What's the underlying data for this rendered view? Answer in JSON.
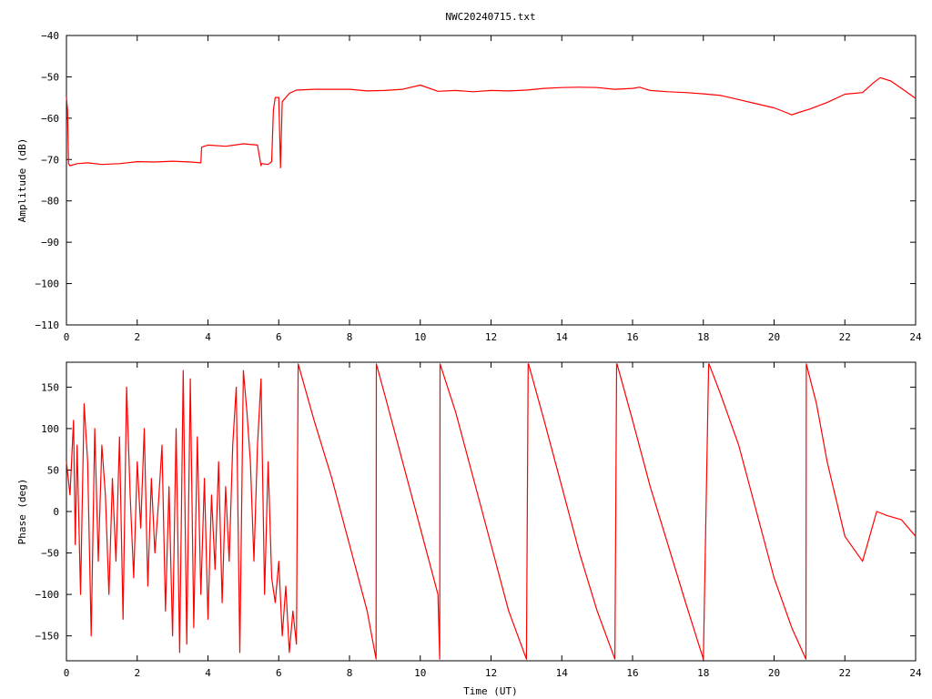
{
  "chart_data": [
    {
      "type": "line",
      "title": "NWC20240715.txt",
      "xlabel": "",
      "ylabel": "Amplitude (dB)",
      "xlim": [
        0,
        24
      ],
      "ylim": [
        -110,
        -40
      ],
      "xticks": [
        0,
        2,
        4,
        6,
        8,
        10,
        12,
        14,
        16,
        18,
        20,
        22,
        24
      ],
      "yticks": [
        -110,
        -100,
        -90,
        -80,
        -70,
        -60,
        -50,
        -40
      ],
      "xtick_labels": [
        "0",
        "2",
        "4",
        "6",
        "8",
        "10",
        "12",
        "14",
        "16",
        "18",
        "20",
        "22",
        "24"
      ],
      "ytick_labels": [
        "−110",
        "−100",
        "−90",
        "−80",
        "−70",
        "−60",
        "−50",
        "−40"
      ],
      "color": "#ff0000",
      "grid": false,
      "series": [
        {
          "x": [
            0.0,
            0.03,
            0.06,
            0.1,
            0.3,
            0.6,
            1.0,
            1.5,
            2.0,
            2.5,
            3.0,
            3.5,
            3.8,
            3.82,
            4.0,
            4.5,
            5.0,
            5.4,
            5.5,
            5.52,
            5.7,
            5.8,
            5.85,
            5.9,
            6.0,
            6.05,
            6.1,
            6.2,
            6.3,
            6.5,
            7.0,
            7.5,
            8.0,
            8.5,
            9.0,
            9.5,
            10.0,
            10.5,
            11.0,
            11.5,
            12.0,
            12.5,
            13.0,
            13.5,
            14.0,
            14.5,
            15.0,
            15.5,
            16.0,
            16.2,
            16.5,
            17.0,
            17.5,
            18.0,
            18.5,
            19.0,
            19.5,
            20.0,
            20.3,
            20.5,
            20.7,
            21.0,
            21.5,
            22.0,
            22.5,
            22.8,
            23.0,
            23.3,
            23.6,
            24.0
          ],
          "y": [
            -55,
            -58,
            -71,
            -71.5,
            -71,
            -70.8,
            -71.2,
            -71,
            -70.5,
            -70.6,
            -70.4,
            -70.6,
            -70.8,
            -67,
            -66.5,
            -66.8,
            -66.2,
            -66.5,
            -71.5,
            -71,
            -71.2,
            -70.5,
            -58,
            -55,
            -55,
            -72,
            -56,
            -55,
            -54,
            -53.2,
            -53,
            -53,
            -53,
            -53.4,
            -53.3,
            -53,
            -52,
            -53.5,
            -53.3,
            -53.6,
            -53.3,
            -53.4,
            -53.2,
            -52.8,
            -52.6,
            -52.5,
            -52.6,
            -53,
            -52.8,
            -52.5,
            -53.3,
            -53.6,
            -53.8,
            -54.1,
            -54.5,
            -55.5,
            -56.5,
            -57.5,
            -58.5,
            -59.2,
            -58.6,
            -57.8,
            -56.2,
            -54.2,
            -53.8,
            -51.5,
            -50.2,
            -51,
            -52.8,
            -55.2
          ]
        }
      ]
    },
    {
      "type": "line",
      "title": "",
      "xlabel": "Time (UT)",
      "ylabel": "Phase (deg)",
      "xlim": [
        0,
        24
      ],
      "ylim": [
        -180,
        180
      ],
      "xticks": [
        0,
        2,
        4,
        6,
        8,
        10,
        12,
        14,
        16,
        18,
        20,
        22,
        24
      ],
      "yticks": [
        -150,
        -100,
        -50,
        0,
        50,
        100,
        150
      ],
      "xtick_labels": [
        "0",
        "2",
        "4",
        "6",
        "8",
        "10",
        "12",
        "14",
        "16",
        "18",
        "20",
        "22",
        "24"
      ],
      "ytick_labels": [
        "−150",
        "−100",
        "−50",
        "0",
        "50",
        "100",
        "150"
      ],
      "color": "#ff0000",
      "grid": false,
      "series": [
        {
          "x": [
            0.0,
            0.1,
            0.2,
            0.25,
            0.3,
            0.4,
            0.5,
            0.6,
            0.7,
            0.8,
            0.9,
            1.0,
            1.1,
            1.2,
            1.3,
            1.4,
            1.5,
            1.6,
            1.7,
            1.8,
            1.9,
            2.0,
            2.1,
            2.2,
            2.3,
            2.4,
            2.5,
            2.6,
            2.7,
            2.8,
            2.9,
            3.0,
            3.1,
            3.2,
            3.3,
            3.4,
            3.5,
            3.6,
            3.7,
            3.8,
            3.9,
            4.0,
            4.1,
            4.2,
            4.3,
            4.4,
            4.5,
            4.6,
            4.7,
            4.8,
            4.9,
            5.0,
            5.1,
            5.2,
            5.3,
            5.4,
            5.5,
            5.6,
            5.7,
            5.8,
            5.9,
            6.0,
            6.1,
            6.2,
            6.3,
            6.4,
            6.5,
            6.55,
            7.0,
            7.5,
            8.0,
            8.5,
            8.75,
            8.76,
            9.0,
            9.5,
            10.0,
            10.5,
            10.55,
            10.56,
            11.0,
            11.5,
            12.0,
            12.5,
            13.0,
            13.05,
            13.06,
            13.5,
            14.0,
            14.5,
            15.0,
            15.5,
            15.55,
            15.56,
            16.0,
            16.5,
            17.0,
            17.5,
            18.0,
            18.15,
            18.16,
            18.5,
            19.0,
            19.5,
            20.0,
            20.5,
            20.9,
            20.91,
            21.2,
            21.5,
            22.0,
            22.5,
            22.7,
            22.9,
            23.2,
            23.6,
            24.0
          ],
          "y": [
            60,
            20,
            110,
            -40,
            80,
            -100,
            130,
            60,
            -150,
            100,
            -60,
            80,
            20,
            -100,
            40,
            -60,
            90,
            -130,
            150,
            20,
            -80,
            60,
            -20,
            100,
            -90,
            40,
            -50,
            10,
            80,
            -120,
            30,
            -150,
            100,
            -170,
            170,
            -160,
            160,
            -140,
            90,
            -100,
            40,
            -130,
            20,
            -70,
            60,
            -110,
            30,
            -60,
            80,
            150,
            -170,
            170,
            120,
            60,
            -60,
            80,
            160,
            -100,
            60,
            -80,
            -110,
            -60,
            -150,
            -90,
            -170,
            -120,
            -160,
            178,
            110,
            40,
            -40,
            -120,
            -178,
            178,
            140,
            60,
            -20,
            -100,
            -178,
            178,
            120,
            40,
            -40,
            -120,
            -178,
            178,
            178,
            110,
            30,
            -50,
            -120,
            -178,
            178,
            178,
            110,
            30,
            -40,
            -110,
            -178,
            178,
            178,
            140,
            80,
            0,
            -80,
            -140,
            -178,
            178,
            130,
            60,
            -30,
            -60,
            -30,
            0,
            -5,
            -10,
            -30
          ]
        }
      ]
    }
  ]
}
